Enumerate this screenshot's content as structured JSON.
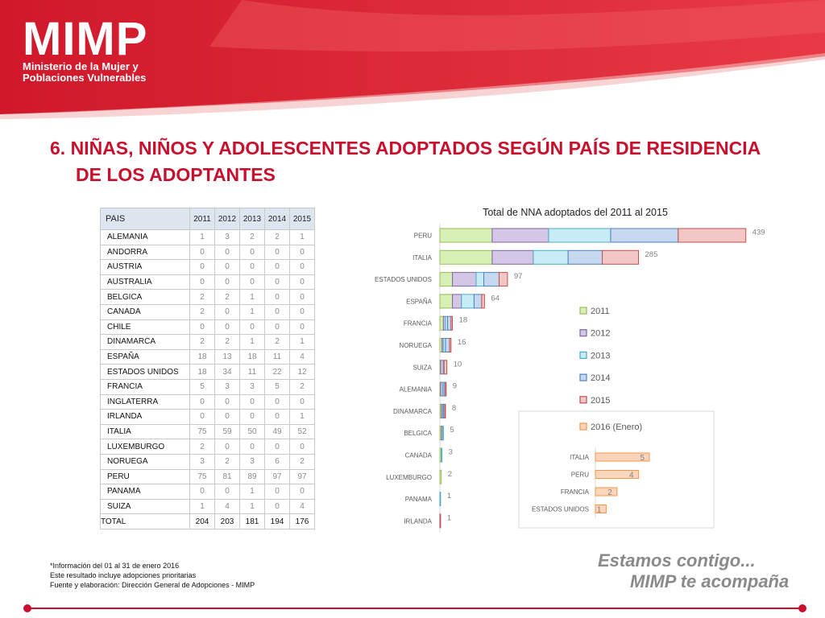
{
  "logo": {
    "name": "MIMP",
    "line1": "Ministerio de la Mujer y",
    "line2": "Poblaciones Vulnerables"
  },
  "title": {
    "line1": "6. NIÑAS, NIÑOS Y ADOLESCENTES ADOPTADOS SEGÚN PAÍS DE RESIDENCIA",
    "line2": "DE LOS ADOPTANTES"
  },
  "table": {
    "header": [
      "PAIS",
      "2011",
      "2012",
      "2013",
      "2014",
      "2015"
    ],
    "rows": [
      [
        "ALEMANIA",
        "1",
        "3",
        "2",
        "2",
        "1"
      ],
      [
        "ANDORRA",
        "0",
        "0",
        "0",
        "0",
        "0"
      ],
      [
        "AUSTRIA",
        "0",
        "0",
        "0",
        "0",
        "0"
      ],
      [
        "AUSTRALIA",
        "0",
        "0",
        "0",
        "0",
        "0"
      ],
      [
        "BELGICA",
        "2",
        "2",
        "1",
        "0",
        "0"
      ],
      [
        "CANADA",
        "2",
        "0",
        "1",
        "0",
        "0"
      ],
      [
        "CHILE",
        "0",
        "0",
        "0",
        "0",
        "0"
      ],
      [
        "DINAMARCA",
        "2",
        "2",
        "1",
        "2",
        "1"
      ],
      [
        "ESPAÑA",
        "18",
        "13",
        "18",
        "11",
        "4"
      ],
      [
        "ESTADOS UNIDOS",
        "18",
        "34",
        "11",
        "22",
        "12"
      ],
      [
        "FRANCIA",
        "5",
        "3",
        "3",
        "5",
        "2"
      ],
      [
        "INGLATERRA",
        "0",
        "0",
        "0",
        "0",
        "0"
      ],
      [
        "IRLANDA",
        "0",
        "0",
        "0",
        "0",
        "1"
      ],
      [
        "ITALIA",
        "75",
        "59",
        "50",
        "49",
        "52"
      ],
      [
        "LUXEMBURGO",
        "2",
        "0",
        "0",
        "0",
        "0"
      ],
      [
        "NORUEGA",
        "3",
        "2",
        "3",
        "6",
        "2"
      ],
      [
        "PERU",
        "75",
        "81",
        "89",
        "97",
        "97"
      ],
      [
        "PANAMA",
        "0",
        "0",
        "1",
        "0",
        "0"
      ],
      [
        "SUIZA",
        "1",
        "4",
        "1",
        "0",
        "4"
      ]
    ],
    "total": [
      "TOTAL",
      "204",
      "203",
      "181",
      "194",
      "176"
    ]
  },
  "chart_data": [
    {
      "type": "bar",
      "orientation": "horizontal",
      "stacked": true,
      "title": "Total de NNA adoptados del 2011 al 2015",
      "categories": [
        "PERU",
        "ITALIA",
        "ESTADOS UNIDOS",
        "ESPAÑA",
        "FRANCIA",
        "NORUEGA",
        "SUIZA",
        "ALEMANIA",
        "DINAMARCA",
        "BELGICA",
        "CANADA",
        "LUXEMBURGO",
        "PANAMA",
        "IRLANDA"
      ],
      "series": [
        {
          "name": "2011",
          "color": "#d7f0b6",
          "stroke": "#9bbb59",
          "values": [
            75,
            75,
            18,
            18,
            5,
            3,
            1,
            1,
            2,
            2,
            2,
            2,
            0,
            0
          ]
        },
        {
          "name": "2012",
          "color": "#d4c6e6",
          "stroke": "#8064a2",
          "values": [
            81,
            59,
            34,
            13,
            3,
            2,
            4,
            3,
            2,
            2,
            0,
            0,
            0,
            0
          ]
        },
        {
          "name": "2013",
          "color": "#c8ecf6",
          "stroke": "#4bacc6",
          "values": [
            89,
            50,
            11,
            18,
            3,
            3,
            1,
            2,
            1,
            1,
            1,
            0,
            1,
            0
          ]
        },
        {
          "name": "2014",
          "color": "#c6d8f0",
          "stroke": "#4f81bd",
          "values": [
            97,
            49,
            22,
            11,
            5,
            6,
            0,
            2,
            2,
            0,
            0,
            0,
            0,
            0
          ]
        },
        {
          "name": "2015",
          "color": "#f4c7c7",
          "stroke": "#c0504d",
          "values": [
            97,
            52,
            12,
            4,
            2,
            2,
            4,
            1,
            1,
            0,
            0,
            0,
            0,
            1
          ]
        }
      ],
      "totals": [
        439,
        285,
        97,
        64,
        18,
        16,
        10,
        9,
        8,
        5,
        3,
        2,
        1,
        1
      ],
      "legend": "right"
    },
    {
      "type": "bar",
      "orientation": "horizontal",
      "legend_entry": {
        "name": "2016 (Enero)",
        "color": "#fbd6bc",
        "stroke": "#f79646"
      },
      "categories": [
        "ITALIA",
        "PERU",
        "FRANCIA",
        "ESTADOS UNIDOS"
      ],
      "values": [
        5,
        4,
        2,
        1
      ]
    }
  ],
  "notes": {
    "line1": "*Información del  01 al 31 de enero 2016",
    "line2": "Este resultado incluye adopciones prioritarias",
    "line3": "Fuente y elaboración: Dirección General de Adopciones - MIMP"
  },
  "slogan": {
    "line1": "Estamos contigo...",
    "line2": "MIMP te acompaña"
  },
  "colors": {
    "brand_red": "#c8102e",
    "dark_red": "#a50f1f"
  }
}
